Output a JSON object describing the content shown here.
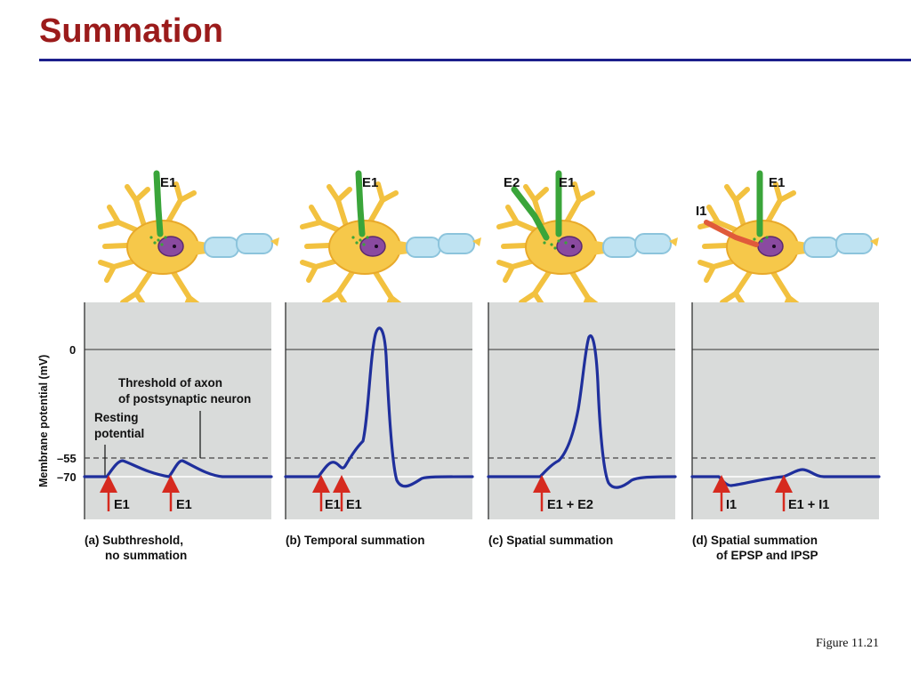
{
  "title": "Summation",
  "figure_ref": "Figure 11.21",
  "y_axis": {
    "label": "Membrane potential (mV)",
    "ticks": [
      "0",
      "–55",
      "–70"
    ]
  },
  "annotations": {
    "threshold_line1": "Threshold of axon",
    "threshold_line2": "of postsynaptic neuron",
    "resting_line1": "Resting",
    "resting_line2": "potential"
  },
  "panels": [
    {
      "neuron_labels": [
        "E1"
      ],
      "stim_labels": [
        "E1",
        "E1"
      ],
      "caption_line1": "(a) Subthreshold,",
      "caption_line2": "no summation"
    },
    {
      "neuron_labels": [
        "E1"
      ],
      "stim_labels": [
        "E1",
        "E1"
      ],
      "caption_line1": "(b) Temporal summation",
      "caption_line2": ""
    },
    {
      "neuron_labels": [
        "E2",
        "E1"
      ],
      "stim_labels": [
        "E1 + E2"
      ],
      "caption_line1": "(c) Spatial summation",
      "caption_line2": ""
    },
    {
      "neuron_labels": [
        "I1",
        "E1"
      ],
      "stim_labels": [
        "I1",
        "E1 + I1"
      ],
      "caption_line1": "(d) Spatial summation",
      "caption_line2": "of EPSP and IPSP"
    }
  ],
  "colors": {
    "title": "#9b1b1b",
    "rule": "#1c1f8c",
    "trace": "#1f2f9c",
    "plot_bg": "#d9dbda",
    "arrow": "#d62a1f",
    "cell_body": "#f6c84a",
    "nucleus": "#8a4aa0",
    "axon_sheath": "#bfe3f2",
    "excitatory_fiber": "#3aa53a",
    "inhibitory_fiber": "#e05a3a"
  }
}
